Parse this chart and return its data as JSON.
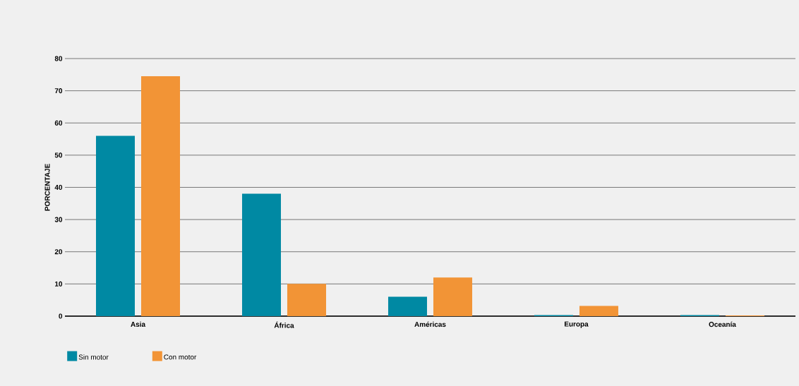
{
  "chart_data": {
    "type": "bar",
    "ylabel": "PORCENTAJE",
    "categories": [
      "Asia",
      "África",
      "Américas",
      "Europa",
      "Oceanía"
    ],
    "series": [
      {
        "name": "Sin motor",
        "color": "#0089a3",
        "values": [
          56,
          38,
          6,
          0.3,
          0.3
        ]
      },
      {
        "name": "Con motor",
        "color": "#f29436",
        "values": [
          74.5,
          10,
          12,
          3.2,
          0.2
        ]
      }
    ],
    "ylim": [
      0,
      80
    ],
    "yticks": [
      0,
      10,
      20,
      30,
      40,
      50,
      60,
      70,
      80
    ],
    "grid": "y",
    "legend": "bottom left"
  }
}
